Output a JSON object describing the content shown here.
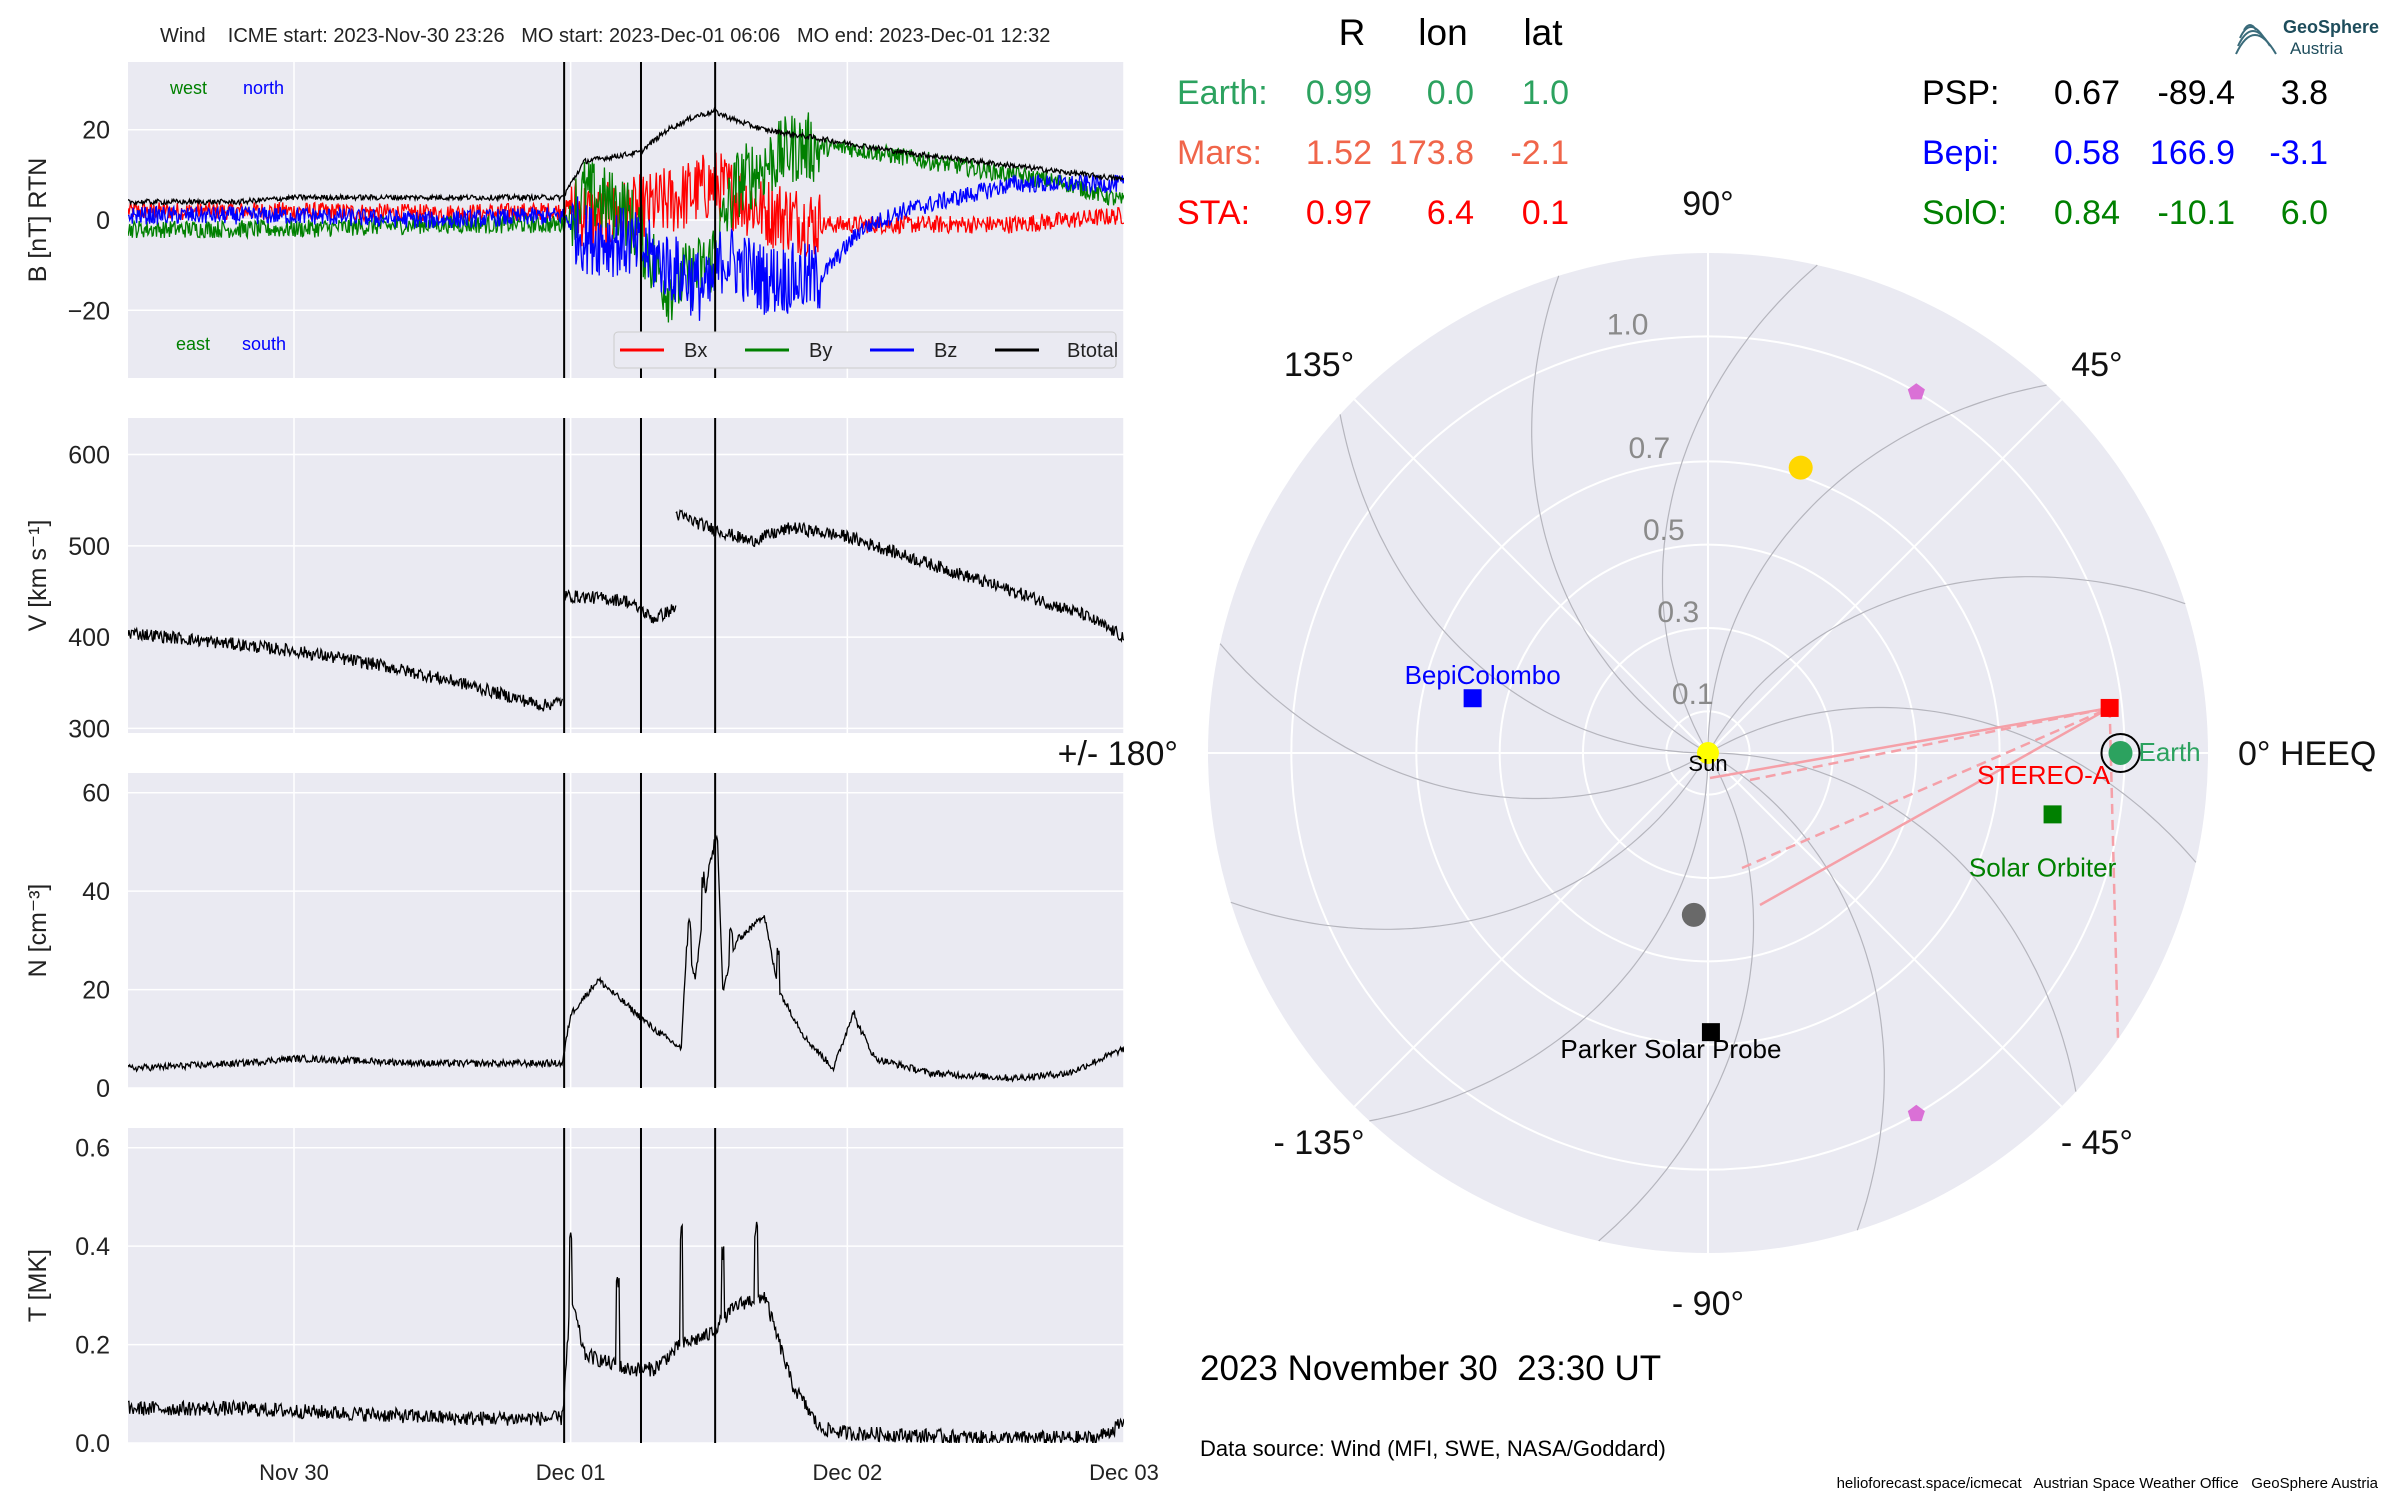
{
  "header": {
    "title": "Wind    ICME start: 2023-Nov-30 23:26   MO start: 2023-Dec-01 06:06   MO end: 2023-Dec-01 12:32"
  },
  "logo": {
    "line1": "GeoSphere",
    "line2": "Austria"
  },
  "positions_table": {
    "columns": [
      "R",
      "lon",
      "lat"
    ],
    "left": [
      {
        "label": "Earth:",
        "r": "0.99",
        "lon": "0.0",
        "lat": "1.0",
        "color": "#2ca25f"
      },
      {
        "label": "Mars:",
        "r": "1.52",
        "lon": "173.8",
        "lat": "-2.1",
        "color": "#f0654a"
      },
      {
        "label": "STA:",
        "r": "0.97",
        "lon": "6.4",
        "lat": "0.1",
        "color": "#ff0000"
      }
    ],
    "right": [
      {
        "label": "PSP:",
        "r": "0.67",
        "lon": "-89.4",
        "lat": "3.8",
        "color": "#000000"
      },
      {
        "label": "Bepi:",
        "r": "0.58",
        "lon": "166.9",
        "lat": "-3.1",
        "color": "#0000ff"
      },
      {
        "label": "SolO:",
        "r": "0.84",
        "lon": "-10.1",
        "lat": "6.0",
        "color": "#008000"
      }
    ]
  },
  "timestamp": "2023 November 30  23:30 UT",
  "data_source": "Data source: Wind (MFI, SWE, NASA/Goddard)",
  "credit": "helioforecast.space/icmecat   Austrian Space Weather Office   GeoSphere Austria",
  "chart_data": [
    {
      "type": "line",
      "panel": "magnetic_field",
      "ylabel": "B [nT] RTN",
      "ylim": [
        -35,
        35
      ],
      "yticks": [
        "20",
        "0",
        "−20"
      ],
      "ytick_values": [
        20,
        0,
        -20
      ],
      "xlim": [
        -1.6,
        2.0
      ],
      "xticks": [
        "Nov 30",
        "Dec 01",
        "Dec 02",
        "Dec 03"
      ],
      "xtick_values": [
        -1,
        0,
        1,
        2
      ],
      "xunit": "days relative to 2023-Dec-01 00:00 UT",
      "event_lines": [
        -0.0236,
        0.2542,
        0.5222
      ],
      "direction_labels": [
        {
          "text": "west",
          "color": "#008000"
        },
        {
          "text": "north",
          "color": "#0000ff"
        },
        {
          "text": "east",
          "color": "#008000"
        },
        {
          "text": "south",
          "color": "#0000ff"
        }
      ],
      "legend": "lower-right",
      "series": [
        {
          "name": "Bx",
          "color": "#ff0000",
          "noise": 2.0,
          "points": [
            [
              -1.6,
              2
            ],
            [
              -1.0,
              2
            ],
            [
              -0.5,
              1.5
            ],
            [
              -0.03,
              2
            ],
            [
              0.0,
              3
            ],
            [
              0.1,
              0
            ],
            [
              0.25,
              2
            ],
            [
              0.4,
              5
            ],
            [
              0.52,
              8
            ],
            [
              0.7,
              2
            ],
            [
              0.9,
              -1
            ],
            [
              1.2,
              -1
            ],
            [
              1.6,
              -1
            ],
            [
              2.0,
              1
            ]
          ]
        },
        {
          "name": "By",
          "color": "#008000",
          "noise": 2.0,
          "points": [
            [
              -1.6,
              -2
            ],
            [
              -1.0,
              -2
            ],
            [
              -0.5,
              -1
            ],
            [
              -0.03,
              -1
            ],
            [
              0.05,
              6
            ],
            [
              0.2,
              2
            ],
            [
              0.35,
              -15
            ],
            [
              0.5,
              -10
            ],
            [
              0.6,
              8
            ],
            [
              0.8,
              16
            ],
            [
              1.0,
              16
            ],
            [
              1.4,
              12
            ],
            [
              1.8,
              8
            ],
            [
              2.0,
              4
            ]
          ]
        },
        {
          "name": "Bz",
          "color": "#0000ff",
          "noise": 2.0,
          "points": [
            [
              -1.6,
              1
            ],
            [
              -1.0,
              1
            ],
            [
              -0.5,
              0
            ],
            [
              -0.03,
              1
            ],
            [
              0.05,
              -4
            ],
            [
              0.2,
              -5
            ],
            [
              0.35,
              -10
            ],
            [
              0.5,
              -16
            ],
            [
              0.55,
              -8
            ],
            [
              0.7,
              -13
            ],
            [
              0.9,
              -13
            ],
            [
              1.05,
              -2
            ],
            [
              1.2,
              2
            ],
            [
              1.4,
              5
            ],
            [
              1.6,
              8
            ],
            [
              2.0,
              8
            ]
          ]
        },
        {
          "name": "Btotal",
          "color": "#000000",
          "noise": 0.6,
          "points": [
            [
              -1.6,
              4
            ],
            [
              -1.2,
              4
            ],
            [
              -1.0,
              5
            ],
            [
              -0.5,
              5
            ],
            [
              -0.03,
              5
            ],
            [
              0.05,
              13
            ],
            [
              0.25,
              15
            ],
            [
              0.35,
              20
            ],
            [
              0.45,
              23
            ],
            [
              0.52,
              24
            ],
            [
              0.6,
              22
            ],
            [
              0.7,
              20
            ],
            [
              0.9,
              18
            ],
            [
              1.2,
              15
            ],
            [
              1.6,
              12
            ],
            [
              2.0,
              9
            ]
          ]
        }
      ]
    },
    {
      "type": "line",
      "panel": "speed",
      "ylabel": "V [km s⁻¹]",
      "ylim": [
        295,
        640
      ],
      "yticks": [
        "600",
        "500",
        "400",
        "300"
      ],
      "ytick_values": [
        600,
        500,
        400,
        300
      ],
      "xlim": [
        -1.6,
        2.0
      ],
      "event_lines": [
        -0.0236,
        0.2542,
        0.5222
      ],
      "series": [
        {
          "name": "V",
          "color": "#000000",
          "noise": 7,
          "segments": [
            [
              [
                -1.6,
                405
              ],
              [
                -1.3,
                395
              ],
              [
                -1.0,
                385
              ],
              [
                -0.7,
                370
              ],
              [
                -0.4,
                350
              ],
              [
                -0.1,
                325
              ],
              [
                -0.03,
                330
              ]
            ],
            [
              [
                -0.02,
                445
              ],
              [
                0.1,
                443
              ],
              [
                0.2,
                440
              ],
              [
                0.3,
                420
              ],
              [
                0.38,
                432
              ]
            ],
            [
              [
                0.38,
                535
              ],
              [
                0.5,
                520
              ],
              [
                0.65,
                505
              ],
              [
                0.8,
                520
              ],
              [
                1.0,
                510
              ],
              [
                1.3,
                480
              ],
              [
                1.6,
                450
              ],
              [
                1.85,
                425
              ],
              [
                2.0,
                400
              ]
            ]
          ]
        }
      ]
    },
    {
      "type": "line",
      "panel": "density",
      "ylabel": "N [cm⁻³]",
      "ylim": [
        0,
        64
      ],
      "yticks": [
        "60",
        "40",
        "20",
        "0"
      ],
      "ytick_values": [
        60,
        40,
        20,
        0
      ],
      "xlim": [
        -1.6,
        2.0
      ],
      "event_lines": [
        -0.0236,
        0.2542,
        0.5222
      ],
      "series": [
        {
          "name": "N",
          "color": "#000000",
          "noise": 0.7,
          "points": [
            [
              -1.6,
              4
            ],
            [
              -1.2,
              5
            ],
            [
              -1.0,
              6
            ],
            [
              -0.5,
              5
            ],
            [
              -0.03,
              5
            ],
            [
              0.0,
              15
            ],
            [
              0.1,
              22
            ],
            [
              0.2,
              17
            ],
            [
              0.3,
              12
            ],
            [
              0.4,
              8
            ],
            [
              0.42,
              30
            ],
            [
              0.45,
              22
            ],
            [
              0.5,
              45
            ],
            [
              0.53,
              52
            ],
            [
              0.55,
              20
            ],
            [
              0.6,
              30
            ],
            [
              0.7,
              35
            ],
            [
              0.75,
              20
            ],
            [
              0.85,
              10
            ],
            [
              0.95,
              4
            ],
            [
              1.02,
              15
            ],
            [
              1.1,
              6
            ],
            [
              1.3,
              3
            ],
            [
              1.6,
              2
            ],
            [
              1.8,
              3
            ],
            [
              2.0,
              8
            ]
          ],
          "spikes": [
            [
              0.43,
              35
            ],
            [
              0.48,
              44
            ],
            [
              0.52,
              52
            ],
            [
              0.58,
              33
            ],
            [
              0.68,
              37
            ],
            [
              0.75,
              30
            ],
            [
              1.02,
              16
            ]
          ]
        }
      ]
    },
    {
      "type": "line",
      "panel": "temperature",
      "ylabel": "T [MK]",
      "ylim": [
        0,
        0.64
      ],
      "yticks": [
        "0.6",
        "0.4",
        "0.2",
        "0.0"
      ],
      "ytick_values": [
        0.6,
        0.4,
        0.2,
        0.0
      ],
      "xlim": [
        -1.6,
        2.0
      ],
      "xticks": [
        "Nov 30",
        "Dec 01",
        "Dec 02",
        "Dec 03"
      ],
      "xtick_values": [
        -1,
        0,
        1,
        2
      ],
      "event_lines": [
        -0.0236,
        0.2542,
        0.5222
      ],
      "series": [
        {
          "name": "T",
          "color": "#000000",
          "noise": 0.015,
          "points": [
            [
              -1.6,
              0.07
            ],
            [
              -1.2,
              0.07
            ],
            [
              -0.8,
              0.06
            ],
            [
              -0.4,
              0.05
            ],
            [
              -0.03,
              0.05
            ],
            [
              0.0,
              0.3
            ],
            [
              0.05,
              0.18
            ],
            [
              0.2,
              0.15
            ],
            [
              0.3,
              0.15
            ],
            [
              0.4,
              0.2
            ],
            [
              0.5,
              0.22
            ],
            [
              0.6,
              0.28
            ],
            [
              0.7,
              0.3
            ],
            [
              0.8,
              0.12
            ],
            [
              0.9,
              0.03
            ],
            [
              1.0,
              0.02
            ],
            [
              1.5,
              0.01
            ],
            [
              1.9,
              0.01
            ],
            [
              2.0,
              0.04
            ]
          ],
          "spikes": [
            [
              0.0,
              0.43
            ],
            [
              0.17,
              0.35
            ],
            [
              0.4,
              0.45
            ],
            [
              0.55,
              0.4
            ],
            [
              0.67,
              0.45
            ]
          ]
        }
      ]
    },
    {
      "type": "scatter",
      "panel": "polar_position_plot",
      "projection": "polar",
      "rlim": [
        0,
        1.2
      ],
      "r_tick_labels": [
        "0.1",
        "0.3",
        "0.5",
        "0.7",
        "1.0"
      ],
      "r_tick_values": [
        0.1,
        0.3,
        0.5,
        0.7,
        1.0
      ],
      "angle_labels": [
        {
          "deg": 90,
          "text": "90°"
        },
        {
          "deg": 45,
          "text": "45°"
        },
        {
          "deg": 135,
          "text": "135°"
        },
        {
          "deg": 180,
          "text": "+/- 180°"
        },
        {
          "deg": 0,
          "text": "0° HEEQ"
        },
        {
          "deg": -135,
          "text": "- 135°"
        },
        {
          "deg": -45,
          "text": "- 45°"
        },
        {
          "deg": -90,
          "text": "- 90°"
        }
      ],
      "bodies": [
        {
          "name": "Sun",
          "label": "Sun",
          "r": 0.0,
          "lon": 0,
          "marker": "circle",
          "color": "#ffff00"
        },
        {
          "name": "Earth",
          "label": "Earth",
          "r": 0.99,
          "lon": 0.0,
          "marker": "circle",
          "color": "#2ca25f"
        },
        {
          "name": "STEREO-A",
          "label": "STEREO-A",
          "r": 0.97,
          "lon": 6.4,
          "marker": "square",
          "color": "#ff0000"
        },
        {
          "name": "Solar Orbiter",
          "label": "Solar Orbiter",
          "r": 0.84,
          "lon": -10.1,
          "marker": "square",
          "color": "#008000"
        },
        {
          "name": "Parker Solar Probe",
          "label": "Parker Solar Probe",
          "r": 0.67,
          "lon": -89.4,
          "marker": "square",
          "color": "#000000"
        },
        {
          "name": "BepiColombo",
          "label": "BepiColombo",
          "r": 0.58,
          "lon": 166.9,
          "marker": "square",
          "color": "#0000ff"
        },
        {
          "name": "venus",
          "label": "",
          "r": 0.72,
          "lon": 72,
          "marker": "circle",
          "color": "#ffd700"
        },
        {
          "name": "mercury",
          "label": "",
          "r": 0.39,
          "lon": -95,
          "marker": "circle",
          "color": "#696969"
        },
        {
          "name": "l4",
          "label": "",
          "r": 1.0,
          "lon": 60,
          "marker": "pentagon",
          "color": "#da70d6"
        },
        {
          "name": "l5",
          "label": "",
          "r": 1.0,
          "lon": -60,
          "marker": "pentagon",
          "color": "#da70d6"
        }
      ],
      "spiral_count": 12,
      "fieldline_color": "#f5a0a8"
    }
  ]
}
